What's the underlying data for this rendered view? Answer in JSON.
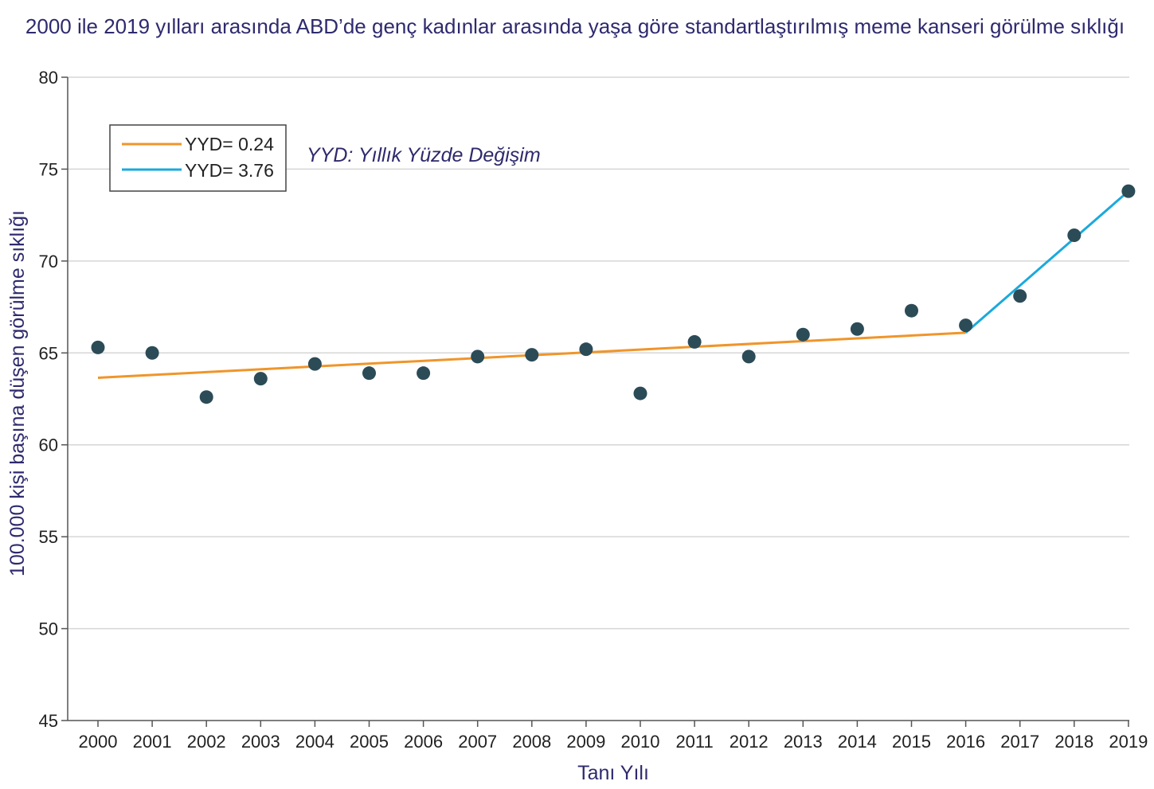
{
  "chart_data": {
    "type": "scatter",
    "title": "2000 ile 2019 yılları arasında ABD’de genç kadınlar arasında yaşa göre standartlaştırılmış meme kanseri görülme sıklığı",
    "xlabel": "Tanı Yılı",
    "ylabel": "100.000 kişi başına düşen görülme sıklığı",
    "ylim": [
      45,
      80
    ],
    "yticks": [
      45,
      50,
      55,
      60,
      65,
      70,
      75,
      80
    ],
    "grid": true,
    "categories": [
      "2000",
      "2001",
      "2002",
      "2003",
      "2004",
      "2005",
      "2006",
      "2007",
      "2008",
      "2009",
      "2010",
      "2011",
      "2012",
      "2013",
      "2014",
      "2015",
      "2016",
      "2017",
      "2018",
      "2019"
    ],
    "series": [
      {
        "values": [
          65.3,
          65.0,
          62.6,
          63.6,
          64.4,
          63.9,
          63.9,
          64.8,
          64.9,
          65.2,
          62.8,
          65.6,
          64.8,
          66.0,
          66.3,
          67.3,
          66.5,
          68.1,
          71.4,
          73.8
        ],
        "color": "#2b4b57"
      }
    ],
    "trend_lines": [
      {
        "label": "YYD= 0.24",
        "color": "#f0952a",
        "from": [
          "2000",
          63.65
        ],
        "to": [
          "2016",
          66.1
        ]
      },
      {
        "label": "YYD= 3.76",
        "color": "#1ba9dc",
        "from": [
          "2016",
          66.1
        ],
        "to": [
          "2019",
          73.8
        ]
      }
    ],
    "legend_placement": "top-left",
    "annotation": "YYD: Yıllık Yüzde Değişim"
  }
}
